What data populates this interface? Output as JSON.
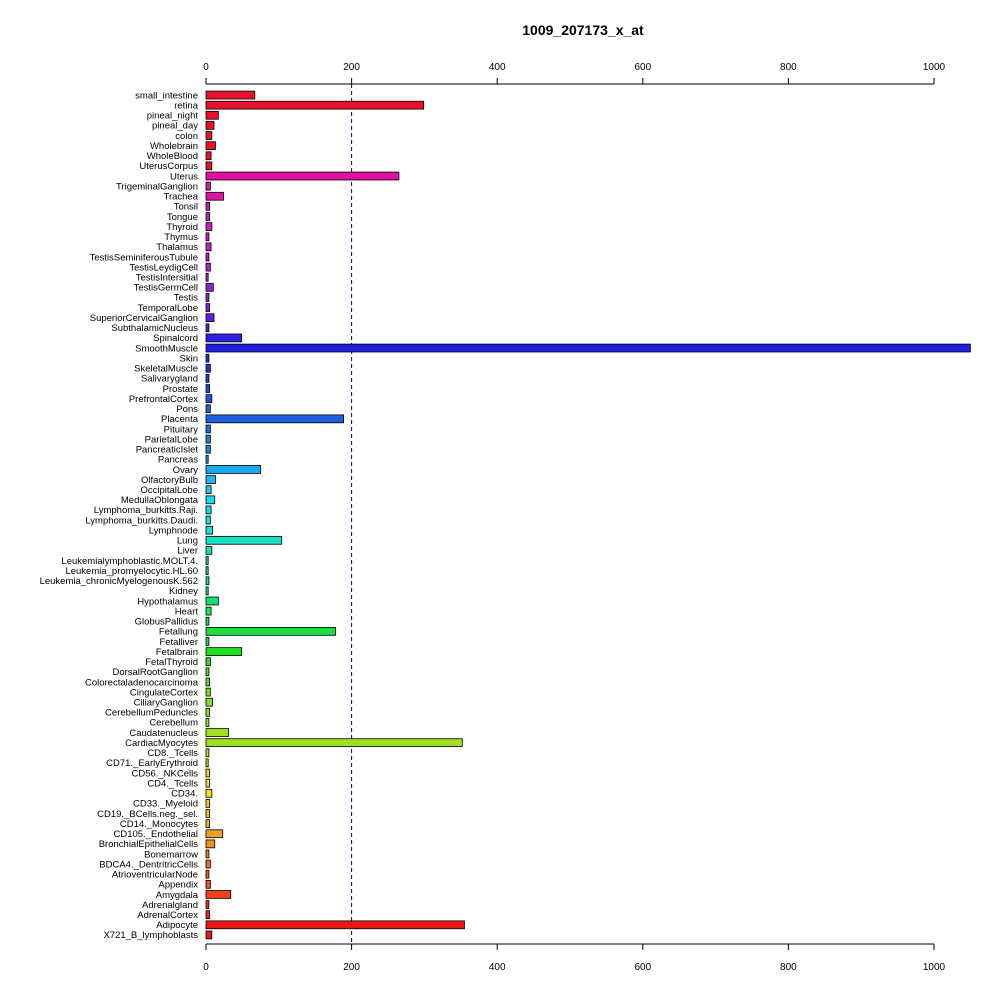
{
  "chart_data": {
    "type": "bar",
    "orientation": "horizontal",
    "title": "1009_207173_x_at",
    "xlim": [
      0,
      1000
    ],
    "xticks": [
      0,
      200,
      400,
      600,
      800,
      1000
    ],
    "reference_line": 200,
    "categories": [
      "small_intestine",
      "retina",
      "pineal_night",
      "pineal_day",
      "colon",
      "Wholebrain",
      "WholeBlood",
      "UterusCorpus",
      "Uterus",
      "TrigeminalGanglion",
      "Trachea",
      "Tonsil",
      "Tongue",
      "Thyroid",
      "Thymus",
      "Thalamus",
      "TestisSeminiferousTubule",
      "TestisLeydigCell",
      "TestisIntersitial",
      "TestisGermCell",
      "Testis",
      "TemporalLobe",
      "SuperiorCervicalGanglion",
      "SubthalamicNucleus",
      "Spinalcord",
      "SmoothMuscle",
      "Skin",
      "SkeletalMuscle",
      "Salivarygland",
      "Prostate",
      "PrefrontalCortex",
      "Pons",
      "Placenta",
      "Pituitary",
      "ParietalLobe",
      "PancreaticIslet",
      "Pancreas",
      "Ovary",
      "OlfactoryBulb",
      "OccipitalLobe",
      "MedullaOblongata",
      "Lymphoma_burkitts.Raji.",
      "Lymphoma_burkitts.Daudi.",
      "Lymphnode",
      "Lung",
      "Liver",
      "Leukemialymphoblastic.MOLT.4.",
      "Leukemia_promyelocytic.HL.60",
      "Leukemia_chronicMyelogenousK.562",
      "Kidney",
      "Hypothalamus",
      "Heart",
      "GlobusPallidus",
      "Fetallung",
      "Fetalliver",
      "Fetalbrain",
      "FetalThyroid",
      "DorsalRootGanglion",
      "Colorectaladenocarcinoma",
      "CingulateCortex",
      "CiliaryGanglion",
      "CerebellumPeduncles",
      "Cerebellum",
      "Caudatenucleus",
      "CardiacMyocytes",
      "CD8._Tcells",
      "CD71._EarlyErythroid",
      "CD56._NKCells",
      "CD4._Tcells",
      "CD34.",
      "CD33._Myeloid",
      "CD19._BCells.neg._sel.",
      "CD14._Monocytes",
      "CD105._Endothelial",
      "BronchialEpithelialCells",
      "Bonemarrow",
      "BDCA4._DentritricCells",
      "AtrioventricularNode",
      "Appendix",
      "Amygdala",
      "Adrenalgland",
      "AdrenalCortex",
      "Adipocyte",
      "X721_B_lymphoblasts"
    ],
    "values": [
      67,
      299,
      17,
      11,
      8,
      13,
      7,
      8,
      265,
      6,
      24,
      5,
      5,
      8,
      4,
      7,
      4,
      6,
      3,
      10,
      4,
      5,
      11,
      4,
      49,
      1050,
      4,
      6,
      4,
      5,
      8,
      6,
      189,
      6,
      6,
      6,
      3,
      75,
      13,
      7,
      12,
      7,
      6,
      9,
      104,
      8,
      3,
      3,
      4,
      3,
      17,
      7,
      4,
      178,
      4,
      49,
      6,
      4,
      5,
      6,
      9,
      5,
      4,
      31,
      352,
      4,
      3,
      5,
      5,
      8,
      5,
      5,
      5,
      23,
      12,
      4,
      6,
      4,
      6,
      34,
      4,
      5,
      355,
      8
    ],
    "colors": [
      "#E8102D",
      "#E8102D",
      "#E8102D",
      "#E8102D",
      "#E8102D",
      "#E8102D",
      "#E8102D",
      "#E8102D",
      "#E010A0",
      "#E010A0",
      "#E010A0",
      "#C020C0",
      "#C020C0",
      "#C020C0",
      "#C020C0",
      "#C020C0",
      "#B020D0",
      "#B020D0",
      "#B020D0",
      "#9020E0",
      "#9020E0",
      "#8020E0",
      "#6020E0",
      "#6020E0",
      "#3020E0",
      "#2020E0",
      "#2030E0",
      "#2030E0",
      "#2040E0",
      "#2050E0",
      "#2050E0",
      "#2060E0",
      "#2060E0",
      "#2070E0",
      "#2080E0",
      "#2080E0",
      "#2090E0",
      "#18A8F0",
      "#18B8F0",
      "#18C8F0",
      "#18D8F0",
      "#18D8E8",
      "#18E0E0",
      "#18E0D8",
      "#18E0C0",
      "#18E0B0",
      "#18E0A0",
      "#18E0A0",
      "#18E090",
      "#18E080",
      "#18E070",
      "#18E060",
      "#18E050",
      "#18E040",
      "#18E040",
      "#20E020",
      "#30E020",
      "#50E020",
      "#60E020",
      "#70E020",
      "#80E020",
      "#90E020",
      "#A0E020",
      "#A0E020",
      "#A0E020",
      "#C0E020",
      "#D0E020",
      "#E0E020",
      "#E8E020",
      "#F0E020",
      "#F0D020",
      "#F0C020",
      "#F0B020",
      "#F0A020",
      "#F09020",
      "#F08020",
      "#F07020",
      "#F06020",
      "#F05020",
      "#F04020",
      "#F03020",
      "#F02020",
      "#E81818",
      "#E81818"
    ]
  }
}
